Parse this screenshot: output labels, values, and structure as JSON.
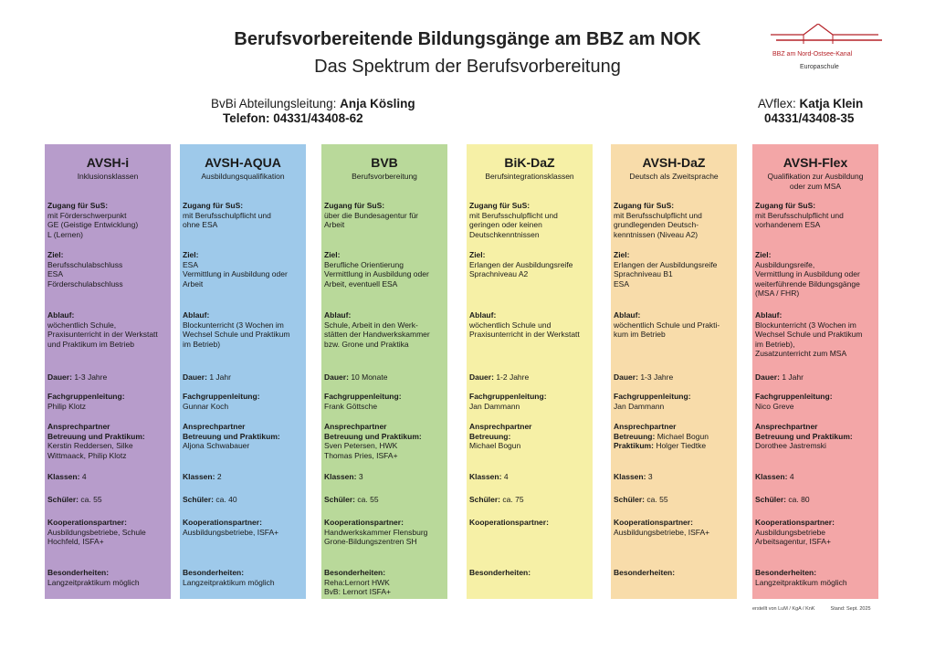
{
  "header": {
    "title": "Berufsvorbereitende Bildungsgänge am BBZ am NOK",
    "subtitle": "Das Spektrum der Berufsvorbereitung",
    "logo_text": "BBZ am Nord-Ostsee-Kanal",
    "logo_sub": "Europaschule"
  },
  "contacts": {
    "left_label": "BvBi Abteilungsleitung: ",
    "left_name": "Anja Kösling",
    "left_phone": "Telefon: 04331/43408-62",
    "right_label": "AVflex: ",
    "right_name": "Katja Klein",
    "right_phone": "04331/43408-35"
  },
  "labels": {
    "zugang": "Zugang für SuS:",
    "ziel": "Ziel:",
    "ablauf": "Ablauf:",
    "dauer": "Dauer:",
    "fachgruppe": "Fachgruppenleitung:",
    "ansprech": "Ansprechpartner",
    "klassen": "Klassen:",
    "schueler": "Schüler:",
    "kooperation": "Kooperationspartner:",
    "besonder": "Besonderheiten:"
  },
  "columns": [
    {
      "color": "#b79ccb",
      "title": "AVSH-i",
      "subtitle": "Inklusionsklassen",
      "zugang": "mit  Förderschwerpunkt\nGE (Geistige Entwicklung)\nL (Lernen)",
      "ziel": "Berufsschulabschluss\nESA\nFörderschulabschluss",
      "ablauf": "wöchentlich Schule,\nPraxisunterricht in der Werkstatt\nund Praktikum im Betrieb",
      "dauer": "1-3 Jahre",
      "fachgruppe": "Philip Klotz",
      "ansprech_label": "Betreuung und Praktikum:",
      "ansprech_value": "Kerstin Reddersen, Silke\nWittmaack, Philip Klotz",
      "klassen": "4",
      "schueler": "ca. 55",
      "kooperation": "Ausbildungsbetriebe, Schule\nHochfeld, ISFA+",
      "besonder": "Langzeitpraktikum  möglich"
    },
    {
      "color": "#9ec9ea",
      "title": "AVSH-AQUA",
      "subtitle": "Ausbildungsqualifikation",
      "zugang": "mit  Berufsschulpflicht und\nohne ESA",
      "ziel": "ESA\nVermittlung in Ausbildung oder\nArbeit",
      "ablauf": "Blockunterricht (3 Wochen im\nWechsel  Schule und Praktikum\nim Betrieb)",
      "dauer": "1 Jahr",
      "fachgruppe": "Gunnar  Koch",
      "ansprech_label": "Betreuung und Praktikum:",
      "ansprech_value": "Aljona Schwabauer",
      "klassen": "2",
      "schueler": "ca. 40",
      "kooperation": "Ausbildungsbetriebe, ISFA+",
      "besonder": "Langzeitpraktikum  möglich"
    },
    {
      "color": "#b9d99a",
      "title": "BVB",
      "subtitle": "Berufsvorbereitung",
      "zugang": "über die Bundesagentur für\nArbeit",
      "ziel": "Berufliche Orientierung\nVermittlung in Ausbildung oder\nArbeit, eventuell ESA",
      "ablauf": "Schule, Arbeit in den Werk-\nstätten der Handwerkskammer\nbzw. Grone und Praktika",
      "dauer": "10 Monate",
      "fachgruppe": "Frank  Göttsche",
      "ansprech_label": "Betreuung und Praktikum:",
      "ansprech_value": "Sven Petersen, HWK\nThomas Pries, ISFA+",
      "klassen": "3",
      "schueler": "ca. 55",
      "kooperation": "Handwerkskammer Flensburg\nGrone-Bildungszentren SH",
      "besonder": "Reha:Lernort HWK\nBvB: Lernort ISFA+"
    },
    {
      "color": "#f6f0a6",
      "title": "BiK-DaZ",
      "subtitle": "Berufsintegrationsklassen",
      "zugang": "mit  Berufsschulpflicht und\ngeringen oder keinen\nDeutschkenntnissen",
      "ziel": "Erlangen der Ausbildungsreife\nSprachniveau A2",
      "ablauf": "wöchentlich Schule und\nPraxisunterricht in der Werkstatt",
      "dauer": "1-2 Jahre",
      "fachgruppe": "Jan Dammann",
      "ansprech_label": "Betreuung:",
      "ansprech_value": "Michael  Bogun",
      "klassen": "4",
      "schueler": "ca. 75",
      "kooperation": "",
      "besonder": ""
    },
    {
      "color": "#f8dcaa",
      "title": "AVSH-DaZ",
      "subtitle": "Deutsch als Zweitsprache",
      "zugang": "mit  Berufsschulpflicht und\ngrundlegenden Deutsch-\nkenntnissen (Niveau A2)",
      "ziel": "Erlangen der Ausbildungsreife\nSprachniveau B1\nESA",
      "ablauf": "wöchentlich Schule und Prakti-\nkum im Betrieb",
      "dauer": "1-3 Jahre",
      "fachgruppe": "Jan Dammann",
      "ansprech_label": "Betreuung:",
      "ansprech_value": "Michael  Bogun",
      "ansprech_label2": "Praktikum:",
      "ansprech_value2": "Holger Tiedtke",
      "klassen": "3",
      "schueler": "ca. 55",
      "kooperation": "Ausbildungsbetriebe, ISFA+",
      "besonder": ""
    },
    {
      "color": "#f3a6a7",
      "title": "AVSH-Flex",
      "subtitle": "Qualifikation zur Ausbildung\noder zum MSA",
      "zugang": "mit  Berufsschulpflicht und\nvorhandenem ESA",
      "ziel": "Ausbildungsreife,\nVermittlung in Ausbildung oder\nweiterführende Bildungsgänge\n(MSA / FHR)",
      "ablauf": "Blockunterricht (3 Wochen im\nWechsel  Schule und Praktikum\nim Betrieb),\nZusatzunterricht zum MSA",
      "dauer": "1 Jahr",
      "fachgruppe": "Nico Greve",
      "ansprech_label": "Betreuung und Praktikum:",
      "ansprech_value": "Dorothee Jastremski",
      "klassen": "4",
      "schueler": "ca. 80",
      "kooperation": "Ausbildungsbetriebe\nArbeitsagentur, ISFA+",
      "besonder": "Langzeitpraktikum  möglich"
    }
  ],
  "footer": {
    "left": "erstellt von LuM / KgA /  KnK",
    "right": "Stand:  Sept. 2025"
  }
}
